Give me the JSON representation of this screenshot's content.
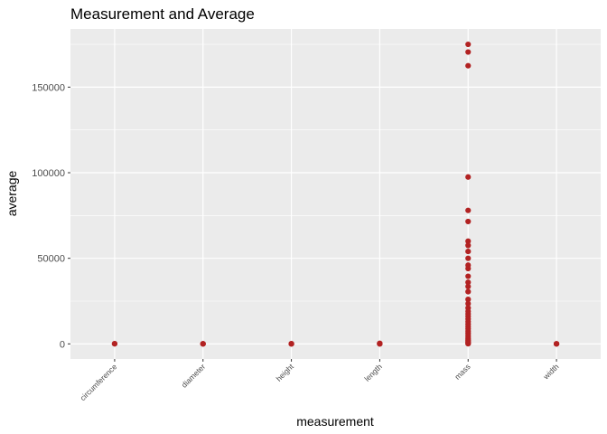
{
  "chart_data": {
    "type": "scatter",
    "title": "Measurement and Average",
    "xlabel": "measurement",
    "ylabel": "average",
    "categories": [
      "circumference",
      "diameter",
      "height",
      "length",
      "mass",
      "width"
    ],
    "ylim": [
      -8800,
      184000
    ],
    "yticks": [
      0,
      50000,
      100000,
      150000
    ],
    "ytick_labels": [
      "0",
      "50000",
      "100000",
      "150000"
    ],
    "grid": true,
    "point_color": "#B22222",
    "panel_color": "#EBEBEB",
    "points": [
      {
        "x": "circumference",
        "y": 120
      },
      {
        "x": "circumference",
        "y": 60
      },
      {
        "x": "diameter",
        "y": 30
      },
      {
        "x": "diameter",
        "y": 80
      },
      {
        "x": "diameter",
        "y": 10
      },
      {
        "x": "height",
        "y": 40
      },
      {
        "x": "height",
        "y": 120
      },
      {
        "x": "height",
        "y": 5
      },
      {
        "x": "length",
        "y": 50
      },
      {
        "x": "length",
        "y": 180
      },
      {
        "x": "length",
        "y": 350
      },
      {
        "x": "length",
        "y": 20
      },
      {
        "x": "mass",
        "y": 175000
      },
      {
        "x": "mass",
        "y": 170500
      },
      {
        "x": "mass",
        "y": 162500
      },
      {
        "x": "mass",
        "y": 97500
      },
      {
        "x": "mass",
        "y": 78000
      },
      {
        "x": "mass",
        "y": 71500
      },
      {
        "x": "mass",
        "y": 60000
      },
      {
        "x": "mass",
        "y": 57500
      },
      {
        "x": "mass",
        "y": 54000
      },
      {
        "x": "mass",
        "y": 50000
      },
      {
        "x": "mass",
        "y": 46000
      },
      {
        "x": "mass",
        "y": 44000
      },
      {
        "x": "mass",
        "y": 39500
      },
      {
        "x": "mass",
        "y": 36000
      },
      {
        "x": "mass",
        "y": 33500
      },
      {
        "x": "mass",
        "y": 30500
      },
      {
        "x": "mass",
        "y": 26000
      },
      {
        "x": "mass",
        "y": 23500
      },
      {
        "x": "mass",
        "y": 21000
      },
      {
        "x": "mass",
        "y": 19000
      },
      {
        "x": "mass",
        "y": 17500
      },
      {
        "x": "mass",
        "y": 16000
      },
      {
        "x": "mass",
        "y": 14500
      },
      {
        "x": "mass",
        "y": 13000
      },
      {
        "x": "mass",
        "y": 11500
      },
      {
        "x": "mass",
        "y": 10000
      },
      {
        "x": "mass",
        "y": 8800
      },
      {
        "x": "mass",
        "y": 7500
      },
      {
        "x": "mass",
        "y": 6200
      },
      {
        "x": "mass",
        "y": 5000
      },
      {
        "x": "mass",
        "y": 4000
      },
      {
        "x": "mass",
        "y": 3000
      },
      {
        "x": "mass",
        "y": 2200
      },
      {
        "x": "mass",
        "y": 1500
      },
      {
        "x": "mass",
        "y": 900
      },
      {
        "x": "mass",
        "y": 400
      },
      {
        "x": "mass",
        "y": 100
      },
      {
        "x": "width",
        "y": 20
      },
      {
        "x": "width",
        "y": 90
      },
      {
        "x": "width",
        "y": 5
      }
    ]
  }
}
